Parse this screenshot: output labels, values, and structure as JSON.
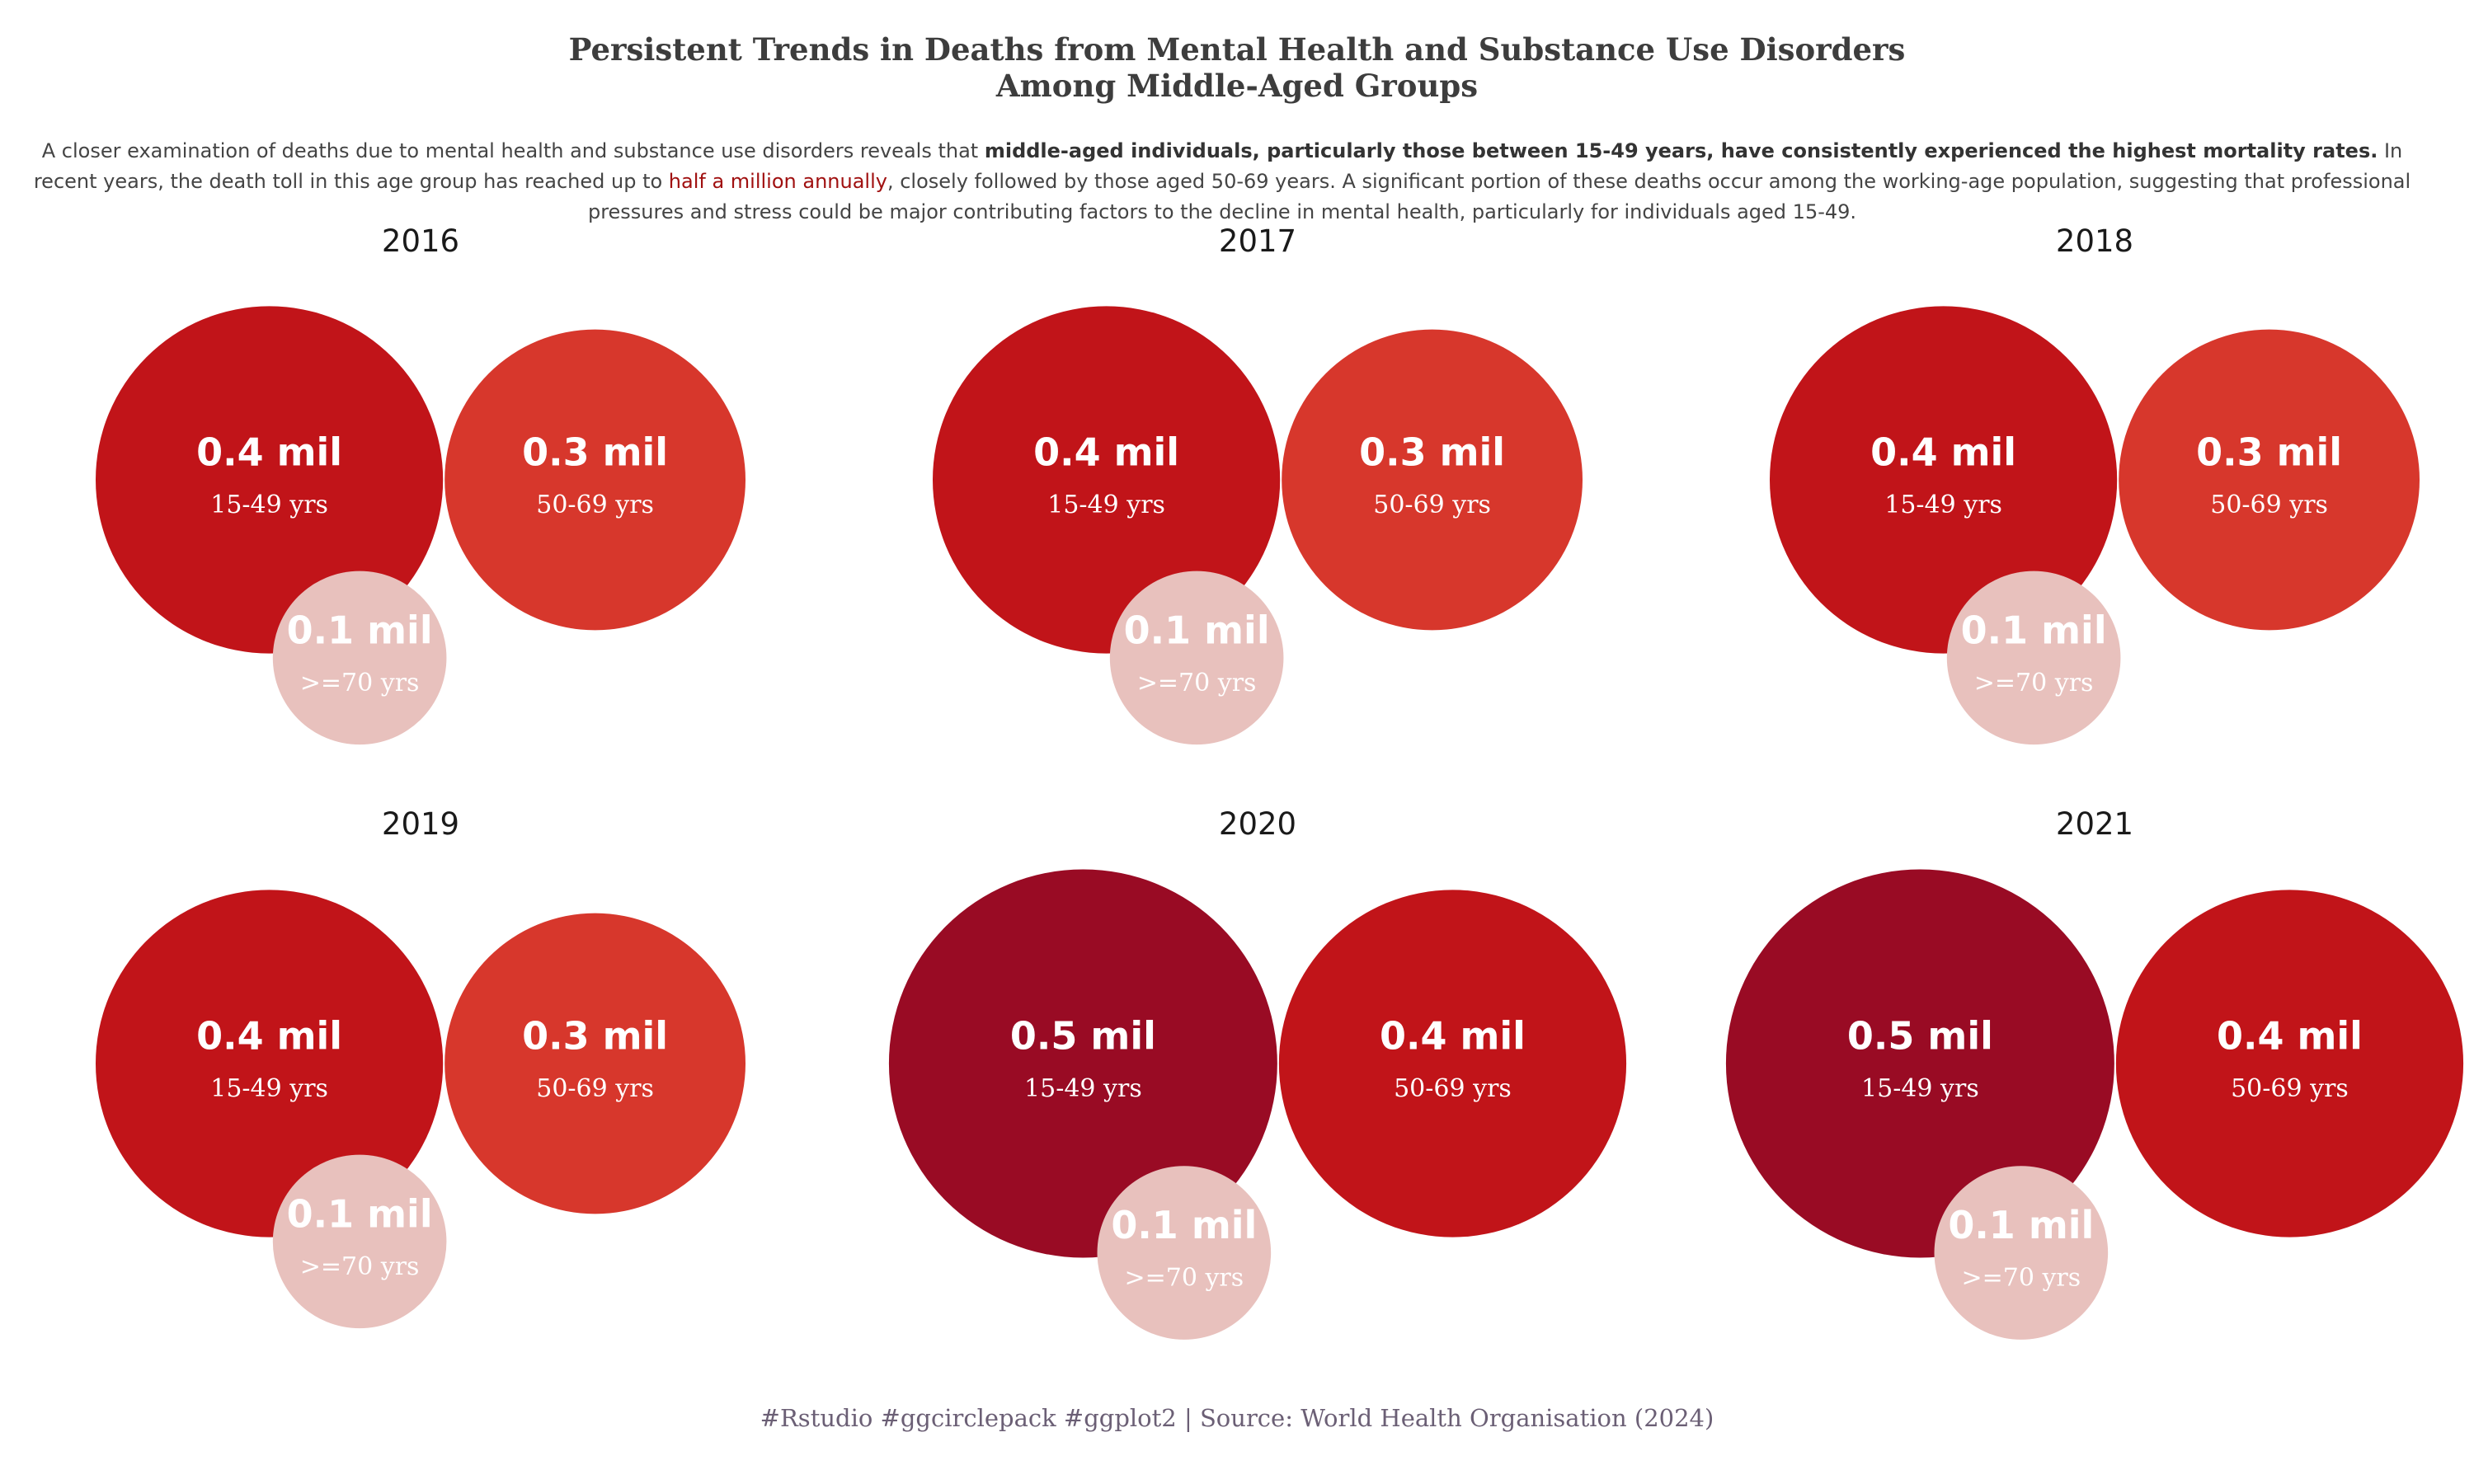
{
  "title_lines": [
    "Persistent  Trends in Deaths from Mental Health and Substance Use Disorders",
    "Among Middle-Aged Groups"
  ],
  "subtitle": {
    "part1": "A closer examination of deaths due to mental health and substance use disorders reveals that ",
    "bold": "middle-aged individuals, particularly those between 15-49 years, have consistently experienced the highest mortality rates.",
    "part2": " In recent years, the death toll in this age group has reached up to ",
    "highlight": "half a million annually",
    "part3": ", closely followed by those aged 50-69 years. A significant portion of these deaths occur among the working-age population, suggesting that professional pressures  and stress could be major contributing factors to the decline in mental health, particularly for individuals aged 15-49."
  },
  "caption": "#Rstudio #ggcirclepack #ggplot2 | Source: World Health Organisation (2024)",
  "colors": {
    "0.5": "#990b24",
    "0.4": "#c11419",
    "0.3": "#d7372c",
    "0.1": "#e8c1bd"
  },
  "chart_data": [
    {
      "type": "circle-pack",
      "title": "2016",
      "groups": [
        {
          "age_group": "15-49 yrs",
          "value_mil": 0.4,
          "label": "0.4 mil"
        },
        {
          "age_group": "50-69 yrs",
          "value_mil": 0.3,
          "label": "0.3 mil"
        },
        {
          "age_group": ">=70 yrs",
          "value_mil": 0.1,
          "label": "0.1 mil"
        }
      ]
    },
    {
      "type": "circle-pack",
      "title": "2017",
      "groups": [
        {
          "age_group": "15-49 yrs",
          "value_mil": 0.4,
          "label": "0.4 mil"
        },
        {
          "age_group": "50-69 yrs",
          "value_mil": 0.3,
          "label": "0.3 mil"
        },
        {
          "age_group": ">=70 yrs",
          "value_mil": 0.1,
          "label": "0.1 mil"
        }
      ]
    },
    {
      "type": "circle-pack",
      "title": "2018",
      "groups": [
        {
          "age_group": "15-49 yrs",
          "value_mil": 0.4,
          "label": "0.4 mil"
        },
        {
          "age_group": "50-69 yrs",
          "value_mil": 0.3,
          "label": "0.3 mil"
        },
        {
          "age_group": ">=70 yrs",
          "value_mil": 0.1,
          "label": "0.1 mil"
        }
      ]
    },
    {
      "type": "circle-pack",
      "title": "2019",
      "groups": [
        {
          "age_group": "15-49 yrs",
          "value_mil": 0.4,
          "label": "0.4 mil"
        },
        {
          "age_group": "50-69 yrs",
          "value_mil": 0.3,
          "label": "0.3 mil"
        },
        {
          "age_group": ">=70 yrs",
          "value_mil": 0.1,
          "label": "0.1 mil"
        }
      ]
    },
    {
      "type": "circle-pack",
      "title": "2020",
      "groups": [
        {
          "age_group": "15-49 yrs",
          "value_mil": 0.5,
          "label": "0.5 mil"
        },
        {
          "age_group": "50-69 yrs",
          "value_mil": 0.4,
          "label": "0.4 mil"
        },
        {
          "age_group": ">=70 yrs",
          "value_mil": 0.1,
          "label": "0.1 mil"
        }
      ]
    },
    {
      "type": "circle-pack",
      "title": "2021",
      "groups": [
        {
          "age_group": "15-49 yrs",
          "value_mil": 0.5,
          "label": "0.5 mil"
        },
        {
          "age_group": "50-69 yrs",
          "value_mil": 0.4,
          "label": "0.4 mil"
        },
        {
          "age_group": ">=70 yrs",
          "value_mil": 0.1,
          "label": "0.1 mil"
        }
      ]
    }
  ]
}
